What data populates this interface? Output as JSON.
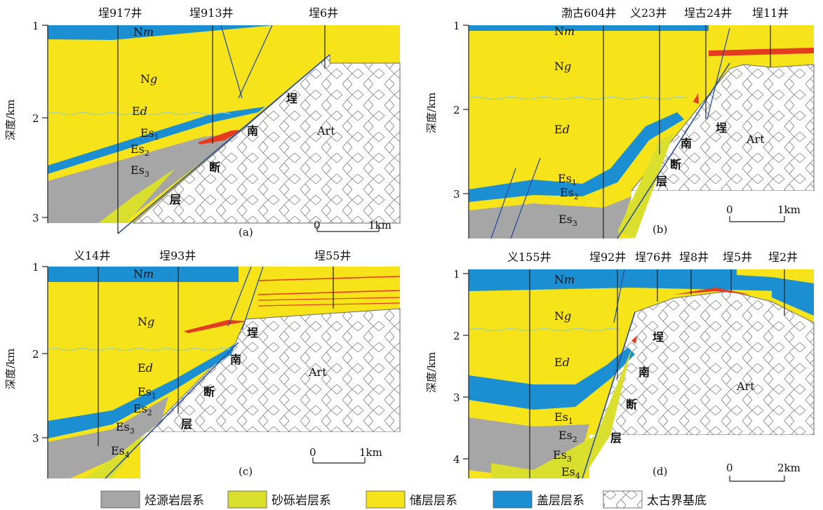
{
  "colors": {
    "source": "#a6a6a6",
    "sandstone": "#d9df2c",
    "reservoir": "#f7e31a",
    "cap": "#1b8fd2",
    "basement_line": "#6a6a6a",
    "oil": "#e53b1e",
    "fault_line": "#2a4fa0",
    "water_line": "#9fd3a8"
  },
  "ylabel": "深度/km",
  "fault_name": [
    "埕",
    "南",
    "断",
    "层"
  ],
  "panels": [
    {
      "id": "a",
      "wells": [
        "埕917井",
        "埕913井",
        "埕6井"
      ],
      "depth_ticks": [
        "1",
        "2",
        "3"
      ],
      "units": {
        "nm_pre": "N",
        "nm_it": "m",
        "ng_pre": "N",
        "ng_it": "g",
        "ed_pre": "E",
        "ed_it": "d",
        "es1_pre": "Es",
        "es1_sub": "1",
        "es2_pre": "Es",
        "es2_sub": "2",
        "es3_pre": "Es",
        "es3_sub": "3",
        "art": "Art"
      },
      "scale": {
        "zero": "0",
        "len": "1km"
      }
    },
    {
      "id": "b",
      "wells": [
        "渤古604井",
        "义23井",
        "埕古24井",
        "埕11井"
      ],
      "depth_ticks": [
        "1",
        "2",
        "3"
      ],
      "units": {
        "nm_pre": "N",
        "nm_it": "m",
        "ng_pre": "N",
        "ng_it": "g",
        "ed_pre": "E",
        "ed_it": "d",
        "es1_pre": "Es",
        "es1_sub": "1",
        "es2_pre": "Es",
        "es2_sub": "2",
        "es3_pre": "Es",
        "es3_sub": "3",
        "art": "Art"
      },
      "scale": {
        "zero": "0",
        "len": "1km"
      }
    },
    {
      "id": "c",
      "wells": [
        "义14井",
        "埕93井",
        "埕55井"
      ],
      "depth_ticks": [
        "1",
        "2",
        "3"
      ],
      "units": {
        "nm_pre": "N",
        "nm_it": "m",
        "ng_pre": "N",
        "ng_it": "g",
        "ed_pre": "E",
        "ed_it": "d",
        "es1_pre": "Es",
        "es1_sub": "1",
        "es2_pre": "Es",
        "es2_sub": "2",
        "es3_pre": "Es",
        "es3_sub": "3",
        "es4_pre": "Es",
        "es4_sub": "4",
        "art": "Art"
      },
      "scale": {
        "zero": "0",
        "len": "1km"
      }
    },
    {
      "id": "d",
      "wells": [
        "义155井",
        "埕92井",
        "埕76井",
        "埕8井",
        "埕5井",
        "埕2井"
      ],
      "depth_ticks": [
        "1",
        "2",
        "3",
        "4"
      ],
      "units": {
        "nm_pre": "N",
        "nm_it": "m",
        "ng_pre": "N",
        "ng_it": "g",
        "ed_pre": "E",
        "ed_it": "d",
        "es1_pre": "Es",
        "es1_sub": "1",
        "es2_pre": "Es",
        "es2_sub": "2",
        "es3_pre": "Es",
        "es3_sub": "3",
        "es4_pre": "Es",
        "es4_sub": "4",
        "art": "Art"
      },
      "scale": {
        "zero": "0",
        "len": "2km"
      }
    }
  ],
  "legend": [
    {
      "key": "source",
      "label": "烃源岩层系"
    },
    {
      "key": "sandstone",
      "label": "砂砾岩层系"
    },
    {
      "key": "reservoir",
      "label": "储层层系"
    },
    {
      "key": "cap",
      "label": "盖层层系"
    },
    {
      "key": "basement",
      "label": "太古界基底"
    }
  ]
}
